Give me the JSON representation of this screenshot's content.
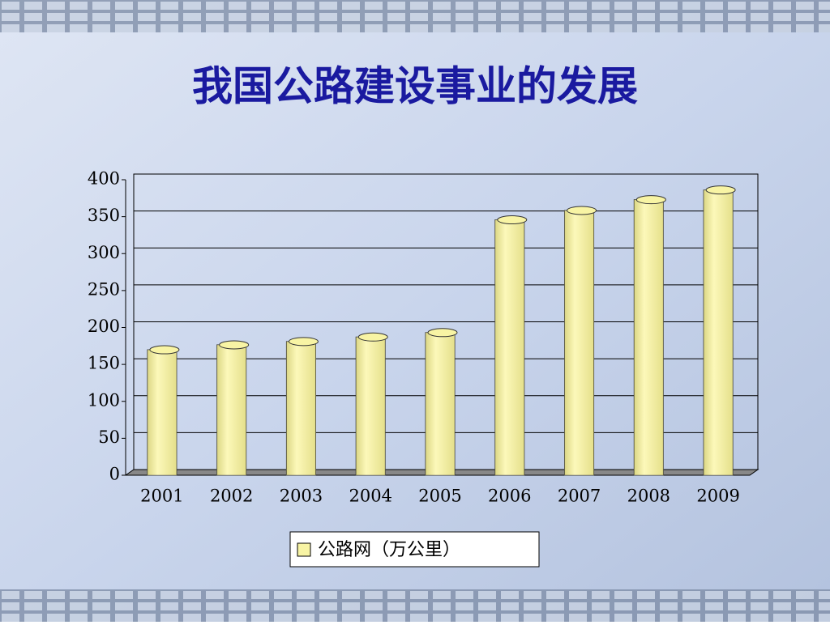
{
  "chart_data": {
    "type": "bar",
    "title": "我国公路建设事业的发展",
    "categories": [
      "2001",
      "2002",
      "2003",
      "2004",
      "2005",
      "2006",
      "2007",
      "2008",
      "2009"
    ],
    "series": [
      {
        "name": "公路网（万公里）",
        "color": "#f8f4a4",
        "values": [
          169.8,
          176.5,
          181.0,
          187.1,
          193.1,
          345.7,
          358.4,
          373.0,
          386.1
        ]
      }
    ],
    "ylim": [
      0,
      400
    ],
    "yticks": [
      0,
      50,
      100,
      150,
      200,
      250,
      300,
      350,
      400
    ],
    "grid": true
  }
}
